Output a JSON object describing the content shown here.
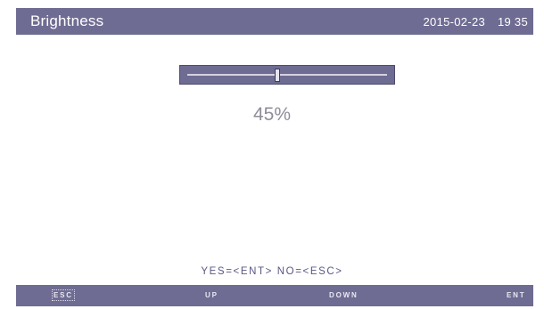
{
  "header": {
    "title": "Brightness",
    "date": "2015-02-23",
    "time": "19 35"
  },
  "brightness": {
    "level_percent": 45,
    "label": "45%"
  },
  "prompt": "YES=<ENT>  NO=<ESC>",
  "footer": {
    "esc_label": "ESC",
    "up_label": "UP",
    "down_label": "DOWN",
    "ent_label": "ENT"
  },
  "colors": {
    "bar_background": "#6f6c93",
    "prompt_text": "#5a5784",
    "value_text": "#8f8d9a"
  }
}
